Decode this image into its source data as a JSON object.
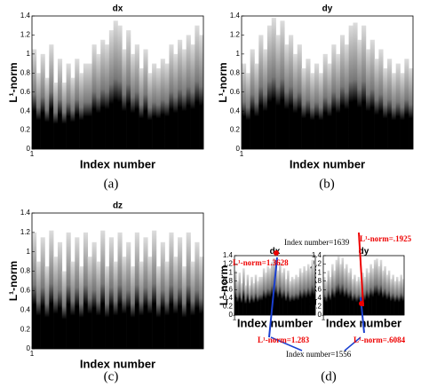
{
  "chart_data": [
    {
      "type": "bar",
      "title": "dx",
      "x_label": "Index number",
      "y_label": "L¹-norm",
      "xlim": [
        1,
        2001
      ],
      "xticks": [
        1
      ],
      "ylim": [
        0,
        1.4
      ],
      "yticks": [
        0,
        0.2,
        0.4,
        0.6,
        0.8,
        1,
        1.2,
        1.4
      ],
      "x": [
        1,
        51,
        101,
        151,
        201,
        251,
        301,
        351,
        401,
        451,
        501,
        551,
        601,
        651,
        701,
        751,
        801,
        851,
        901,
        951,
        1001,
        1051,
        1101,
        1151,
        1201,
        1251,
        1301,
        1351,
        1401,
        1451,
        1501,
        1551,
        1601,
        1651,
        1701,
        1751,
        1801,
        1851,
        1901,
        1951
      ],
      "values": [
        1.05,
        0.8,
        1.0,
        0.75,
        1.1,
        0.7,
        0.95,
        0.7,
        0.9,
        0.75,
        0.95,
        0.8,
        0.9,
        0.9,
        1.1,
        1.0,
        1.15,
        1.1,
        1.25,
        1.35,
        1.3,
        1.05,
        1.25,
        1.0,
        1.1,
        0.85,
        1.05,
        0.8,
        0.9,
        0.85,
        0.95,
        0.9,
        1.1,
        1.0,
        1.15,
        1.05,
        1.2,
        1.1,
        1.3,
        1.2
      ]
    },
    {
      "type": "bar",
      "title": "dy",
      "x_label": "Index number",
      "y_label": "L¹-norm",
      "xlim": [
        1,
        2001
      ],
      "xticks": [
        1
      ],
      "ylim": [
        0,
        1.4
      ],
      "yticks": [
        0,
        0.2,
        0.4,
        0.6,
        0.8,
        1,
        1.2,
        1.4
      ],
      "x": [
        1,
        51,
        101,
        151,
        201,
        251,
        301,
        351,
        401,
        451,
        501,
        551,
        601,
        651,
        701,
        751,
        801,
        851,
        901,
        951,
        1001,
        1051,
        1101,
        1151,
        1201,
        1251,
        1301,
        1351,
        1401,
        1451,
        1501,
        1551,
        1601,
        1651,
        1701,
        1751,
        1801,
        1851,
        1901,
        1951
      ],
      "values": [
        0.9,
        0.8,
        1.05,
        0.9,
        1.2,
        1.05,
        1.3,
        1.38,
        1.2,
        1.35,
        1.1,
        1.2,
        1.0,
        1.1,
        0.85,
        0.95,
        0.8,
        0.9,
        0.8,
        1.0,
        0.9,
        1.1,
        1.0,
        1.2,
        1.1,
        1.3,
        1.33,
        1.15,
        1.3,
        1.05,
        1.15,
        0.95,
        1.05,
        0.85,
        0.95,
        0.8,
        0.9,
        0.8,
        0.95,
        0.85
      ]
    },
    {
      "type": "bar",
      "title": "dz",
      "x_label": "Index number",
      "y_label": "L¹-norm",
      "xlim": [
        1,
        2001
      ],
      "xticks": [
        1
      ],
      "ylim": [
        0,
        1.4
      ],
      "yticks": [
        0,
        0.2,
        0.4,
        0.6,
        0.8,
        1,
        1.2,
        1.4
      ],
      "x": [
        1,
        51,
        101,
        151,
        201,
        251,
        301,
        351,
        401,
        451,
        501,
        551,
        601,
        651,
        701,
        751,
        801,
        851,
        901,
        951,
        1001,
        1051,
        1101,
        1151,
        1201,
        1251,
        1301,
        1351,
        1401,
        1451,
        1501,
        1551,
        1601,
        1651,
        1701,
        1751,
        1801,
        1851,
        1901,
        1951
      ],
      "values": [
        1.2,
        0.9,
        1.15,
        0.85,
        1.22,
        0.95,
        1.1,
        0.8,
        1.2,
        0.9,
        1.15,
        0.85,
        1.2,
        0.95,
        1.1,
        0.9,
        1.22,
        0.85,
        1.15,
        0.9,
        1.2,
        0.95,
        1.1,
        0.85,
        1.2,
        0.9,
        1.15,
        0.95,
        1.22,
        0.85,
        1.1,
        0.9,
        1.2,
        0.95,
        1.15,
        0.85,
        1.2,
        0.9,
        1.1,
        0.95
      ]
    }
  ],
  "panel_labels": [
    "(a)",
    "(b)",
    "(c)",
    "(d)"
  ],
  "annotations": [
    "Index number=1639",
    "L¹-norm=1.3628",
    "L¹-norm=.1925",
    "L¹-norm=1.283",
    "L¹-norm=.6084",
    "Index number=1556"
  ]
}
